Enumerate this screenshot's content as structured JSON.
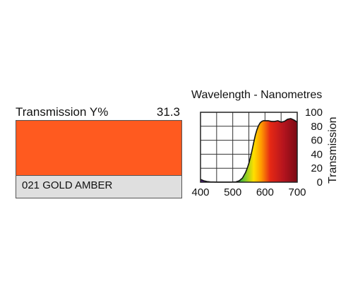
{
  "filter": {
    "transmission_label": "Transmission Y%",
    "transmission_value": "31.3",
    "name": "021 GOLD AMBER",
    "swatch_color": "#ff5a1f"
  },
  "chart_data": {
    "type": "area",
    "title": "Wavelength - Nanometres",
    "xlabel": "",
    "ylabel": "Transmission",
    "xlim": [
      400,
      700
    ],
    "ylim": [
      0,
      100
    ],
    "x_ticks": [
      400,
      500,
      600,
      700
    ],
    "y_ticks": [
      0,
      20,
      40,
      60,
      80,
      100
    ],
    "grid": true,
    "fill": "spectrum",
    "series": [
      {
        "x": [
          400,
          405,
          410,
          420,
          430,
          440,
          450,
          460,
          470,
          480,
          490,
          500,
          510,
          520,
          530,
          540,
          545,
          550,
          555,
          560,
          565,
          570,
          575,
          580,
          585,
          590,
          595,
          600,
          610,
          620,
          630,
          640,
          650,
          660,
          670,
          680,
          690,
          700
        ],
        "y": [
          4,
          3,
          2,
          1,
          0.5,
          0.3,
          0.2,
          0.2,
          0.2,
          0.2,
          0.2,
          0.3,
          0.5,
          2,
          6,
          14,
          20,
          27,
          36,
          46,
          57,
          67,
          75,
          81,
          85,
          87,
          88,
          88,
          88,
          87,
          87,
          88,
          86,
          87,
          90,
          91,
          89,
          86
        ]
      }
    ]
  }
}
